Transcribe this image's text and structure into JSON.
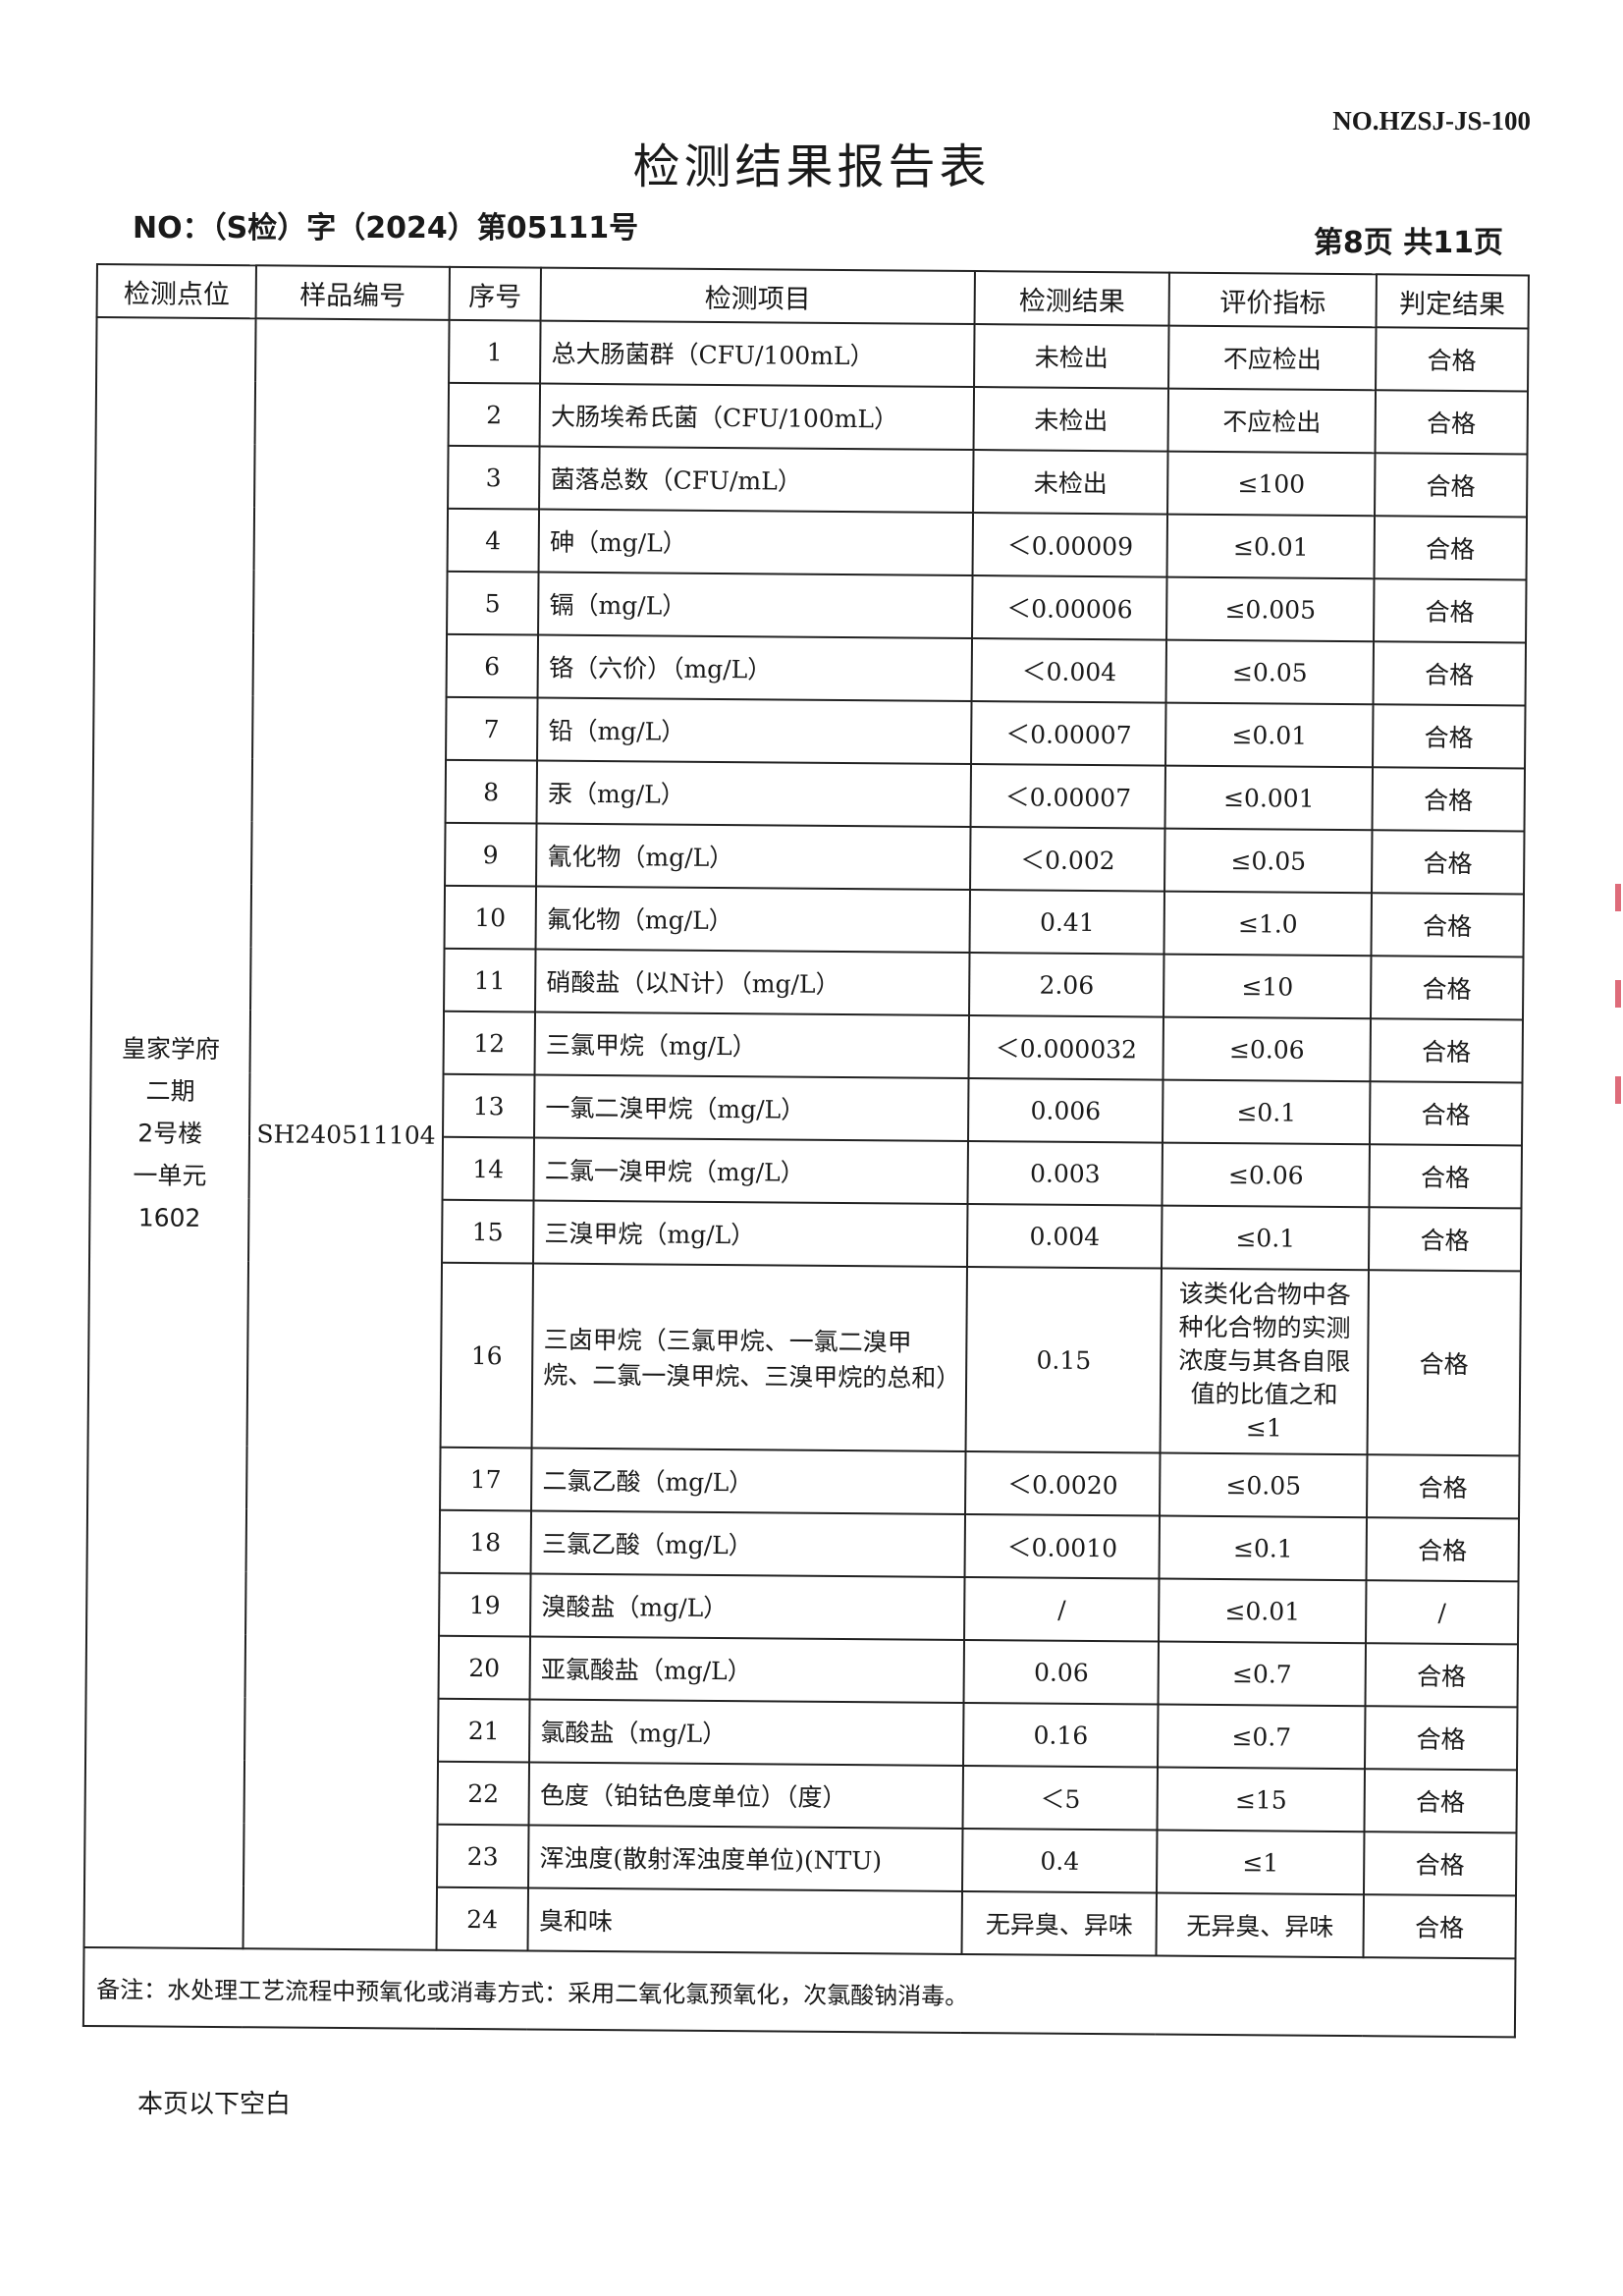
{
  "header": {
    "form_no": "NO.HZSJ-JS-100",
    "title": "检测结果报告表",
    "report_no": "NO：（S检）字（2024）第05111号",
    "page_info": "第8页  共11页"
  },
  "table": {
    "columns": [
      "检测点位",
      "样品编号",
      "序号",
      "检测项目",
      "检测结果",
      "评价指标",
      "判定结果"
    ],
    "location": [
      "皇家学府",
      "二期",
      "2号楼",
      "一单元",
      "1602"
    ],
    "sample_id": "SH240511104",
    "rows": [
      {
        "no": "1",
        "item": "总大肠菌群（CFU/100mL）",
        "result": "未检出",
        "limit": "不应检出",
        "judge": "合格"
      },
      {
        "no": "2",
        "item": "大肠埃希氏菌（CFU/100mL）",
        "result": "未检出",
        "limit": "不应检出",
        "judge": "合格"
      },
      {
        "no": "3",
        "item": "菌落总数（CFU/mL）",
        "result": "未检出",
        "limit": "≤100",
        "judge": "合格"
      },
      {
        "no": "4",
        "item": "砷（mg/L）",
        "result": "＜0.00009",
        "limit": "≤0.01",
        "judge": "合格"
      },
      {
        "no": "5",
        "item": "镉（mg/L）",
        "result": "＜0.00006",
        "limit": "≤0.005",
        "judge": "合格"
      },
      {
        "no": "6",
        "item": "铬（六价）（mg/L）",
        "result": "＜0.004",
        "limit": "≤0.05",
        "judge": "合格"
      },
      {
        "no": "7",
        "item": "铅（mg/L）",
        "result": "＜0.00007",
        "limit": "≤0.01",
        "judge": "合格"
      },
      {
        "no": "8",
        "item": "汞（mg/L）",
        "result": "＜0.00007",
        "limit": "≤0.001",
        "judge": "合格"
      },
      {
        "no": "9",
        "item": "氰化物（mg/L）",
        "result": "＜0.002",
        "limit": "≤0.05",
        "judge": "合格"
      },
      {
        "no": "10",
        "item": "氟化物（mg/L）",
        "result": "0.41",
        "limit": "≤1.0",
        "judge": "合格"
      },
      {
        "no": "11",
        "item": "硝酸盐（以N计）（mg/L）",
        "result": "2.06",
        "limit": "≤10",
        "judge": "合格"
      },
      {
        "no": "12",
        "item": "三氯甲烷（mg/L）",
        "result": "＜0.000032",
        "limit": "≤0.06",
        "judge": "合格"
      },
      {
        "no": "13",
        "item": "一氯二溴甲烷（mg/L）",
        "result": "0.006",
        "limit": "≤0.1",
        "judge": "合格"
      },
      {
        "no": "14",
        "item": "二氯一溴甲烷（mg/L）",
        "result": "0.003",
        "limit": "≤0.06",
        "judge": "合格"
      },
      {
        "no": "15",
        "item": "三溴甲烷（mg/L）",
        "result": "0.004",
        "limit": "≤0.1",
        "judge": "合格"
      },
      {
        "no": "16",
        "item": "三卤甲烷（三氯甲烷、一氯二溴甲烷、二氯一溴甲烷、三溴甲烷的总和）",
        "result": "0.15",
        "limit": "该类化合物中各种化合物的实测浓度与其各自限值的比值之和≤1",
        "judge": "合格"
      },
      {
        "no": "17",
        "item": "二氯乙酸（mg/L）",
        "result": "＜0.0020",
        "limit": "≤0.05",
        "judge": "合格"
      },
      {
        "no": "18",
        "item": "三氯乙酸（mg/L）",
        "result": "＜0.0010",
        "limit": "≤0.1",
        "judge": "合格"
      },
      {
        "no": "19",
        "item": "溴酸盐（mg/L）",
        "result": "/",
        "limit": "≤0.01",
        "judge": "/"
      },
      {
        "no": "20",
        "item": "亚氯酸盐（mg/L）",
        "result": "0.06",
        "limit": "≤0.7",
        "judge": "合格"
      },
      {
        "no": "21",
        "item": "氯酸盐（mg/L）",
        "result": "0.16",
        "limit": "≤0.7",
        "judge": "合格"
      },
      {
        "no": "22",
        "item": "色度（铂钴色度单位）（度）",
        "result": "＜5",
        "limit": "≤15",
        "judge": "合格"
      },
      {
        "no": "23",
        "item": "浑浊度(散射浑浊度单位)(NTU)",
        "result": "0.4",
        "limit": "≤1",
        "judge": "合格"
      },
      {
        "no": "24",
        "item": "臭和味",
        "result": "无异臭、异味",
        "limit": "无异臭、异味",
        "judge": "合格"
      }
    ],
    "remark": "备注：水处理工艺流程中预氧化或消毒方式：采用二氧化氯预氧化，次氯酸钠消毒。"
  },
  "footer": {
    "blank_note": "本页以下空白"
  },
  "colors": {
    "seal": "#d33b4d"
  }
}
